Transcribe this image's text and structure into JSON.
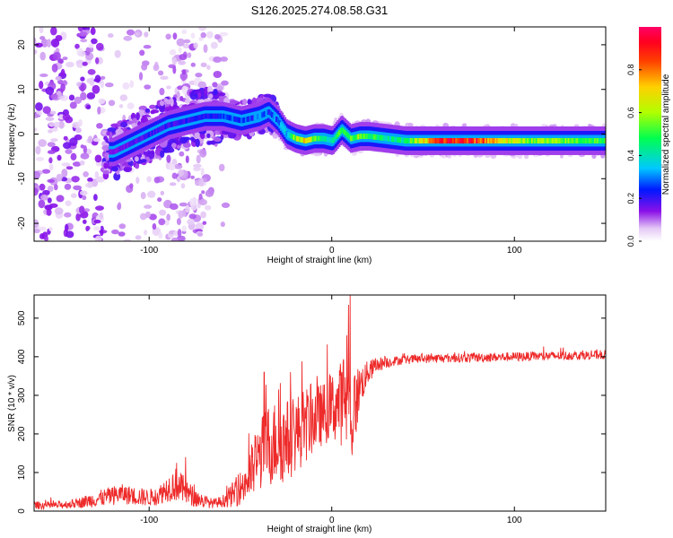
{
  "figure_title": "S126.2025.274.08.58.G31",
  "chart_data": [
    {
      "type": "heatmap",
      "title": "S126.2025.274.08.58.G31",
      "xlabel": "Height of straight line (km)",
      "ylabel": "Frequency (Hz)",
      "xlim": [
        -163,
        150
      ],
      "ylim": [
        -24,
        24
      ],
      "xticks": [
        -100,
        0,
        100
      ],
      "xtick_labels": [
        "-100",
        "0",
        "100"
      ],
      "yticks": [
        -20,
        -10,
        0,
        10,
        20
      ],
      "ytick_labels": [
        "-20",
        "-10",
        "0",
        "10",
        "20"
      ],
      "ridge": {
        "description_points_x": [
          -120,
          -110,
          -100,
          -90,
          -80,
          -70,
          -60,
          -50,
          -40,
          -35,
          -30,
          -25,
          -20,
          -15,
          -10,
          -5,
          0,
          5,
          10,
          15,
          20,
          30,
          40,
          60,
          80,
          100,
          120,
          150
        ],
        "frequency_hz": [
          -4,
          -2,
          0,
          2,
          3,
          4,
          4,
          3,
          4,
          5,
          3,
          0,
          -1,
          -1.5,
          -1,
          -1,
          -1.5,
          1,
          -1,
          -0.5,
          -0.5,
          -1,
          -1.5,
          -1.5,
          -1.5,
          -1.5,
          -1.5,
          -1.5
        ],
        "amplitude": [
          0.15,
          0.18,
          0.2,
          0.2,
          0.2,
          0.22,
          0.25,
          0.3,
          0.35,
          0.3,
          0.3,
          0.35,
          0.6,
          0.75,
          0.55,
          0.4,
          0.45,
          0.5,
          0.5,
          0.6,
          0.5,
          0.4,
          0.45,
          0.9,
          0.85,
          0.6,
          0.55,
          0.5
        ]
      },
      "colorbar": {
        "label": "Normalized spectral amplitude",
        "range": [
          0,
          1
        ],
        "ticks": [
          0.0,
          0.2,
          0.4,
          0.6,
          0.8
        ],
        "tick_labels": [
          "0.0",
          "0.2",
          "0.4",
          "0.6",
          "0.8"
        ],
        "colormap": [
          "#ffffff",
          "#d9b3f0",
          "#7b00e0",
          "#0000ff",
          "#00d0ff",
          "#00ff40",
          "#d0ff00",
          "#ffa000",
          "#ff0000",
          "#ff0060"
        ]
      }
    },
    {
      "type": "line",
      "xlabel": "Height of straight line (km)",
      "ylabel": "SNR (10 * v/v)",
      "xlim": [
        -163,
        150
      ],
      "ylim": [
        0,
        560
      ],
      "xticks": [
        -100,
        0,
        100
      ],
      "xtick_labels": [
        "-100",
        "0",
        "100"
      ],
      "yticks": [
        0,
        100,
        200,
        300,
        400,
        500
      ],
      "ytick_labels": [
        "0",
        "100",
        "200",
        "300",
        "400",
        "500"
      ],
      "series": [
        {
          "name": "SNR",
          "color": "#ee2a2a",
          "x": [
            -163,
            -150,
            -140,
            -130,
            -120,
            -115,
            -110,
            -100,
            -95,
            -90,
            -85,
            -80,
            -75,
            -70,
            -65,
            -60,
            -55,
            -50,
            -45,
            -40,
            -35,
            -30,
            -25,
            -20,
            -15,
            -10,
            -5,
            0,
            5,
            8,
            10,
            12,
            15,
            20,
            25,
            30,
            35,
            40,
            50,
            60,
            80,
            100,
            120,
            150
          ],
          "values": [
            15,
            15,
            20,
            30,
            40,
            45,
            40,
            35,
            40,
            60,
            70,
            50,
            35,
            25,
            20,
            25,
            40,
            60,
            90,
            140,
            170,
            180,
            180,
            200,
            220,
            240,
            250,
            270,
            280,
            300,
            260,
            250,
            320,
            360,
            380,
            385,
            390,
            392,
            395,
            396,
            398,
            400,
            402,
            405
          ],
          "noise_amplitude": [
            10,
            10,
            12,
            20,
            25,
            25,
            25,
            22,
            25,
            35,
            45,
            35,
            25,
            18,
            12,
            15,
            30,
            45,
            70,
            90,
            110,
            110,
            110,
            100,
            100,
            90,
            80,
            90,
            110,
            150,
            160,
            120,
            60,
            30,
            20,
            15,
            12,
            12,
            12,
            12,
            12,
            12,
            12,
            12
          ],
          "spikes": [
            {
              "x": 10,
              "y": 560
            },
            {
              "x": -37,
              "y": 360
            },
            {
              "x": -80,
              "y": 140
            },
            {
              "x": -85,
              "y": 125
            },
            {
              "x": -29,
              "y": 315
            },
            {
              "x": -8,
              "y": 350
            }
          ]
        }
      ]
    }
  ]
}
